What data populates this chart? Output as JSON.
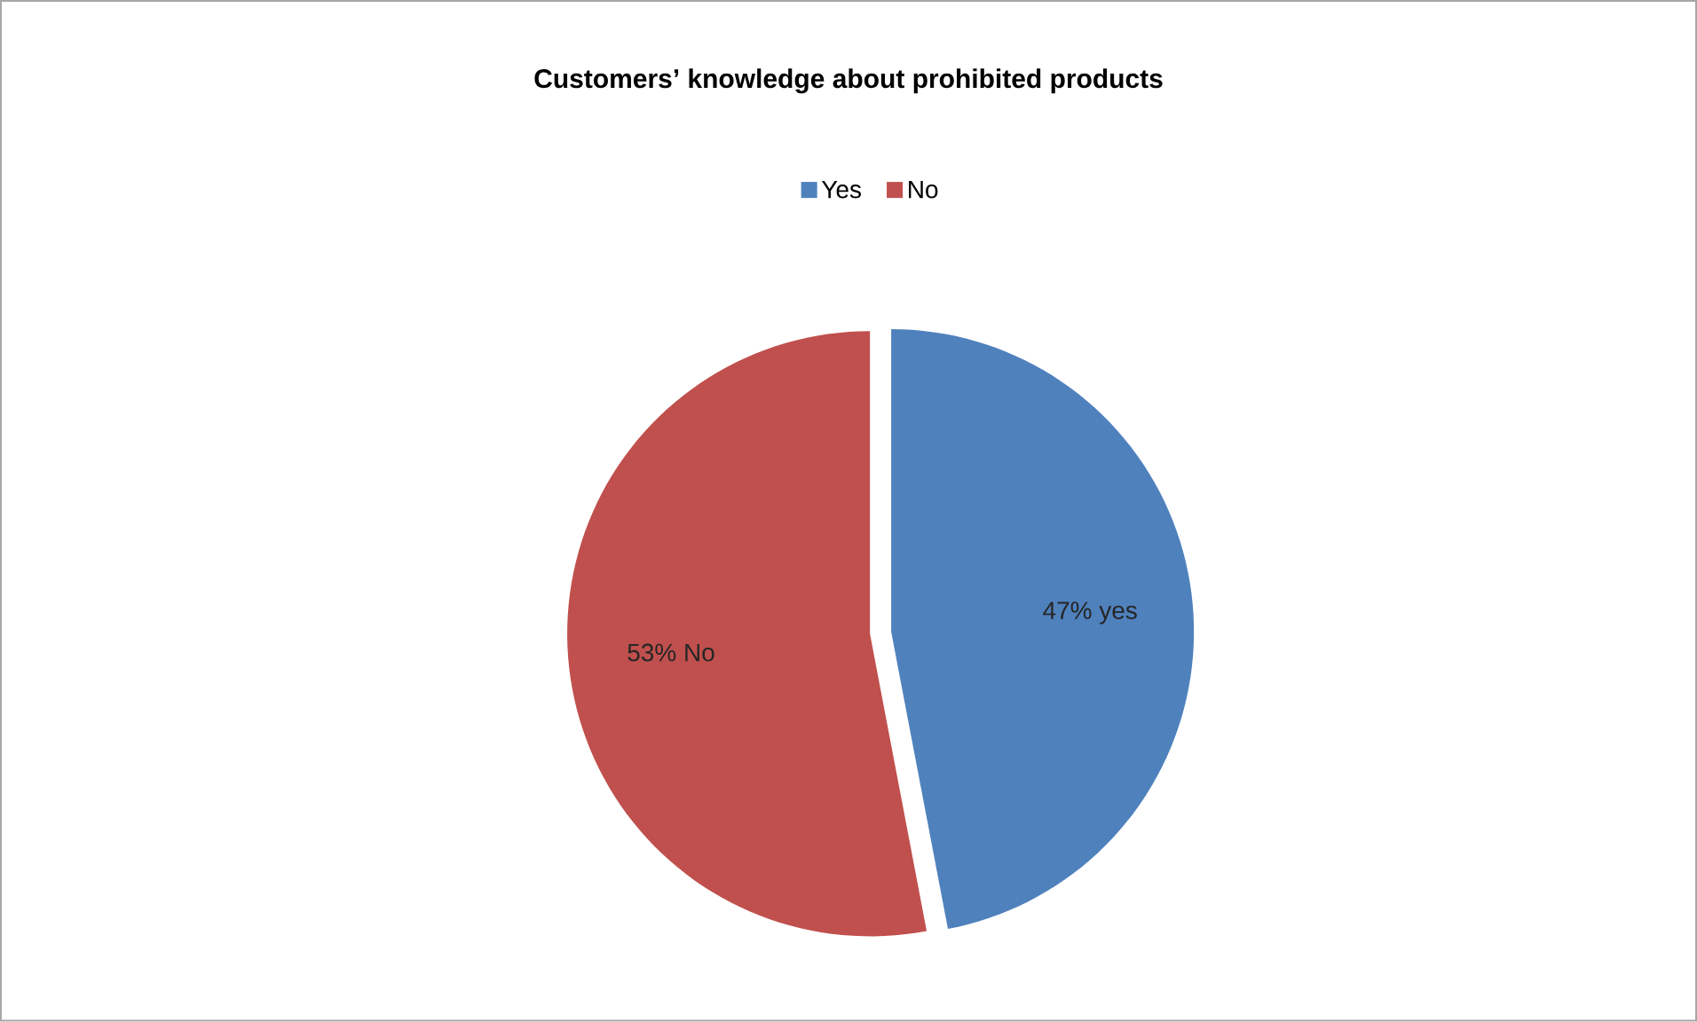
{
  "chart_data": {
    "type": "pie",
    "title": "Customers’ knowledge about prohibited products",
    "categories": [
      "Yes",
      "No"
    ],
    "values": [
      47,
      53
    ],
    "colors": [
      "#4f81bd",
      "#c0504d"
    ],
    "value_labels": [
      "47% yes",
      "53% No"
    ],
    "legend": "top"
  }
}
